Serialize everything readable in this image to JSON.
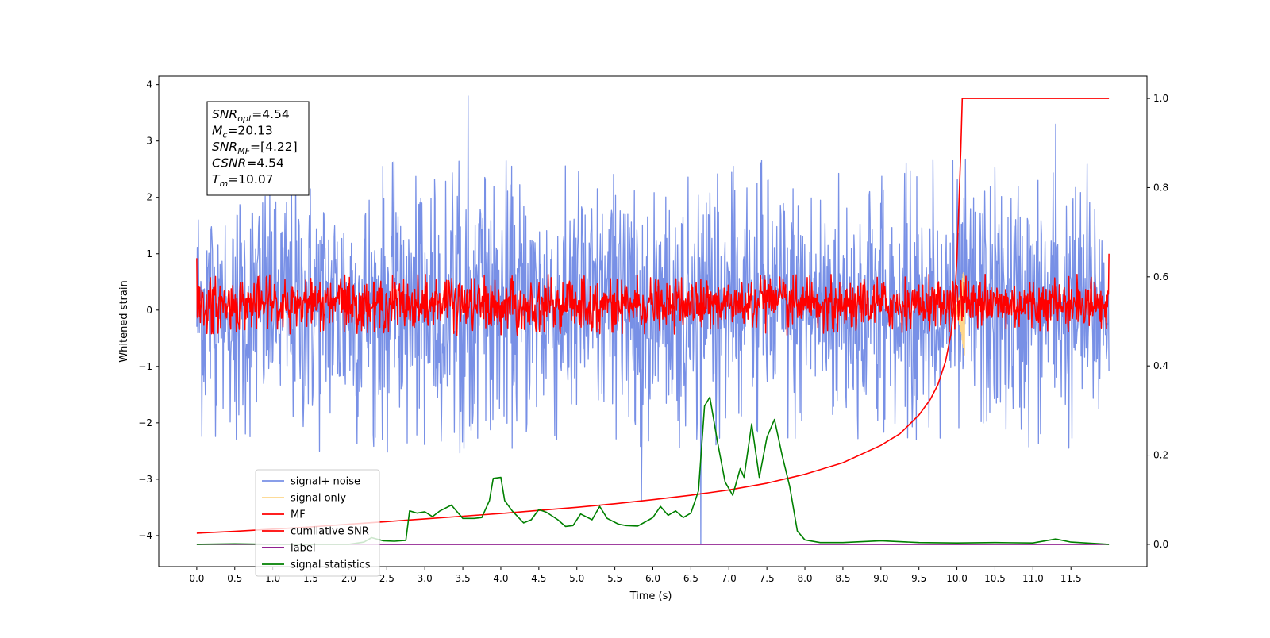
{
  "chart_data": {
    "type": "line",
    "xlabel": "Time (s)",
    "ylabel": "Whitened strain",
    "xlim": [
      -0.5,
      12.5
    ],
    "ylim": [
      -4.55,
      4.15
    ],
    "y2lim": [
      -0.05,
      1.05
    ],
    "x_ticks": [
      "0.0",
      "0.5",
      "1.0",
      "1.5",
      "2.0",
      "2.5",
      "3.0",
      "3.5",
      "4.0",
      "4.5",
      "5.0",
      "5.5",
      "6.0",
      "6.5",
      "7.0",
      "7.5",
      "8.0",
      "8.5",
      "9.0",
      "9.5",
      "10.0",
      "10.5",
      "11.0",
      "11.5"
    ],
    "y_ticks": [
      "−4",
      "−3",
      "−2",
      "−1",
      "0",
      "1",
      "2",
      "3",
      "4"
    ],
    "y2_ticks": [
      "0.0",
      "0.2",
      "0.4",
      "0.6",
      "0.8",
      "1.0"
    ],
    "grid": false,
    "legend_position": "lower-left",
    "legend": [
      {
        "label": "signal+ noise",
        "color": "#7890e6"
      },
      {
        "label": "signal only",
        "color": "#fdd68a"
      },
      {
        "label": "MF",
        "color": "#ff0000"
      },
      {
        "label": "cumilative SNR",
        "color": "#ff0000"
      },
      {
        "label": "label",
        "color": "#800080"
      },
      {
        "label": "signal statistics",
        "color": "#008000"
      }
    ],
    "annotation": {
      "lines": [
        {
          "main": "SNR",
          "sub": "opt",
          "value": "=4.54"
        },
        {
          "main": "M",
          "sub": "c",
          "value": "=20.13"
        },
        {
          "main": "SNR",
          "sub": "MF",
          "value": "=[4.22]"
        },
        {
          "main": "CSNR",
          "sub": "",
          "value": "=4.54"
        },
        {
          "main": "T",
          "sub": "m",
          "value": "=10.07"
        }
      ]
    },
    "series": [
      {
        "name": "signal+ noise",
        "axis": "left",
        "kind": "noise",
        "color": "#7890e6",
        "x_range": [
          0.0,
          12.0
        ],
        "envelope": [
          -2.6,
          2.7
        ],
        "extremes": [
          [
            3.57,
            3.8
          ],
          [
            6.63,
            -4.15
          ],
          [
            5.85,
            -3.4
          ],
          [
            11.3,
            3.3
          ]
        ]
      },
      {
        "name": "signal only",
        "axis": "left",
        "kind": "chirp",
        "color": "#fdd68a",
        "x_range": [
          9.95,
          10.1
        ],
        "amplitude": 0.85
      },
      {
        "name": "MF",
        "axis": "left",
        "kind": "noise",
        "color": "#ff0000",
        "x_range": [
          0.0,
          12.0
        ],
        "envelope": [
          -0.45,
          0.65
        ],
        "extremes": [
          [
            0.0,
            0.92
          ],
          [
            0.0,
            -0.45
          ],
          [
            12.0,
            1.0
          ],
          [
            12.0,
            -0.4
          ]
        ]
      },
      {
        "name": "cumilative SNR",
        "axis": "right",
        "x": [
          0.0,
          0.5,
          1.0,
          1.5,
          2.0,
          2.5,
          3.0,
          3.5,
          4.0,
          4.5,
          5.0,
          5.5,
          6.0,
          6.5,
          7.0,
          7.5,
          8.0,
          8.5,
          9.0,
          9.25,
          9.5,
          9.65,
          9.75,
          9.85,
          9.92,
          9.97,
          10.0,
          10.03,
          10.05,
          10.07,
          12.0
        ],
        "values": [
          0.025,
          0.029,
          0.034,
          0.039,
          0.045,
          0.051,
          0.057,
          0.063,
          0.069,
          0.076,
          0.083,
          0.091,
          0.1,
          0.11,
          0.122,
          0.137,
          0.157,
          0.183,
          0.222,
          0.248,
          0.29,
          0.325,
          0.358,
          0.41,
          0.47,
          0.55,
          0.64,
          0.78,
          0.88,
          1.0,
          1.0
        ],
        "color": "#ff0000"
      },
      {
        "name": "label",
        "axis": "right",
        "x": [
          0.0,
          12.0
        ],
        "values": [
          0.0,
          0.0
        ],
        "color": "#800080"
      },
      {
        "name": "signal statistics",
        "axis": "right",
        "x": [
          0.0,
          0.5,
          1.0,
          1.5,
          2.0,
          2.2,
          2.3,
          2.45,
          2.6,
          2.75,
          2.8,
          2.9,
          3.0,
          3.1,
          3.2,
          3.35,
          3.5,
          3.65,
          3.75,
          3.85,
          3.9,
          4.0,
          4.05,
          4.15,
          4.3,
          4.4,
          4.5,
          4.6,
          4.75,
          4.85,
          4.95,
          5.05,
          5.2,
          5.3,
          5.4,
          5.55,
          5.65,
          5.8,
          5.95,
          6.0,
          6.1,
          6.2,
          6.3,
          6.4,
          6.5,
          6.6,
          6.68,
          6.75,
          6.85,
          6.95,
          7.05,
          7.15,
          7.2,
          7.3,
          7.4,
          7.5,
          7.6,
          7.7,
          7.8,
          7.9,
          8.0,
          8.2,
          8.5,
          9.0,
          9.5,
          10.0,
          10.5,
          11.0,
          11.3,
          11.5,
          12.0
        ],
        "values": [
          0.0,
          0.001,
          0.0,
          0.0,
          0.0,
          0.005,
          0.015,
          0.008,
          0.007,
          0.009,
          0.075,
          0.07,
          0.073,
          0.062,
          0.075,
          0.088,
          0.058,
          0.058,
          0.06,
          0.098,
          0.148,
          0.15,
          0.098,
          0.075,
          0.048,
          0.055,
          0.078,
          0.072,
          0.055,
          0.04,
          0.042,
          0.068,
          0.055,
          0.085,
          0.058,
          0.045,
          0.042,
          0.041,
          0.055,
          0.06,
          0.085,
          0.065,
          0.075,
          0.06,
          0.07,
          0.12,
          0.31,
          0.33,
          0.23,
          0.14,
          0.11,
          0.17,
          0.15,
          0.27,
          0.15,
          0.24,
          0.28,
          0.2,
          0.13,
          0.03,
          0.01,
          0.004,
          0.004,
          0.008,
          0.004,
          0.003,
          0.004,
          0.003,
          0.012,
          0.005,
          0.0
        ],
        "color": "#008000"
      }
    ]
  }
}
